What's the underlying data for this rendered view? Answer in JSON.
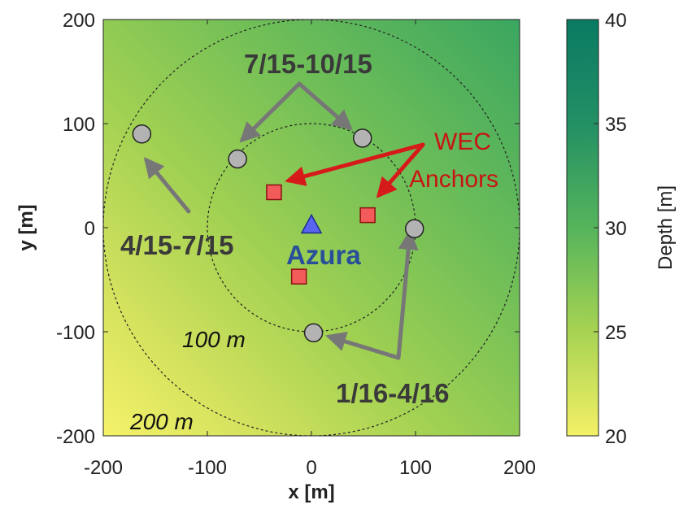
{
  "chart_data": {
    "type": "scatter",
    "title": "",
    "xlabel": "x [m]",
    "ylabel": "y [m]",
    "xlim": [
      -200,
      200
    ],
    "ylim": [
      -200,
      200
    ],
    "xticks": [
      -200,
      -100,
      0,
      100,
      200
    ],
    "yticks": [
      -200,
      -100,
      0,
      100,
      200
    ],
    "grid": false,
    "colorbar": {
      "label": "Depth [m]",
      "range": [
        20,
        40
      ],
      "ticks": [
        20,
        25,
        30,
        35,
        40
      ],
      "colors": [
        "#f4f067",
        "#a7d352",
        "#55b45c",
        "#239064",
        "#0a7a63"
      ]
    },
    "circles": [
      {
        "name": "100 m",
        "radius": 100
      },
      {
        "name": "200 m",
        "radius": 200
      }
    ],
    "series": [
      {
        "marker": "circle",
        "color": "#b3b3b3",
        "x": [
          -163,
          -71,
          49,
          99,
          2
        ],
        "y": [
          90,
          66,
          86,
          -1,
          -101
        ]
      },
      {
        "marker": "square",
        "color": "#f35b5b",
        "x": [
          -36,
          54,
          -12
        ],
        "y": [
          34,
          12,
          -47
        ]
      },
      {
        "name": "Azura",
        "marker": "triangle",
        "color": "#5765f0",
        "x": [
          0
        ],
        "y": [
          2
        ]
      }
    ],
    "annotations": [
      {
        "text": "7/15-10/15",
        "kind": "deploy"
      },
      {
        "text": "4/15-7/15",
        "kind": "deploy"
      },
      {
        "text": "1/16-4/16",
        "kind": "deploy"
      },
      {
        "text": "Azura",
        "kind": "device"
      },
      {
        "text": "WEC",
        "kind": "anchor"
      },
      {
        "text": "Anchors",
        "kind": "anchor"
      },
      {
        "text": "100 m",
        "kind": "radius"
      },
      {
        "text": "200 m",
        "kind": "radius"
      }
    ]
  }
}
